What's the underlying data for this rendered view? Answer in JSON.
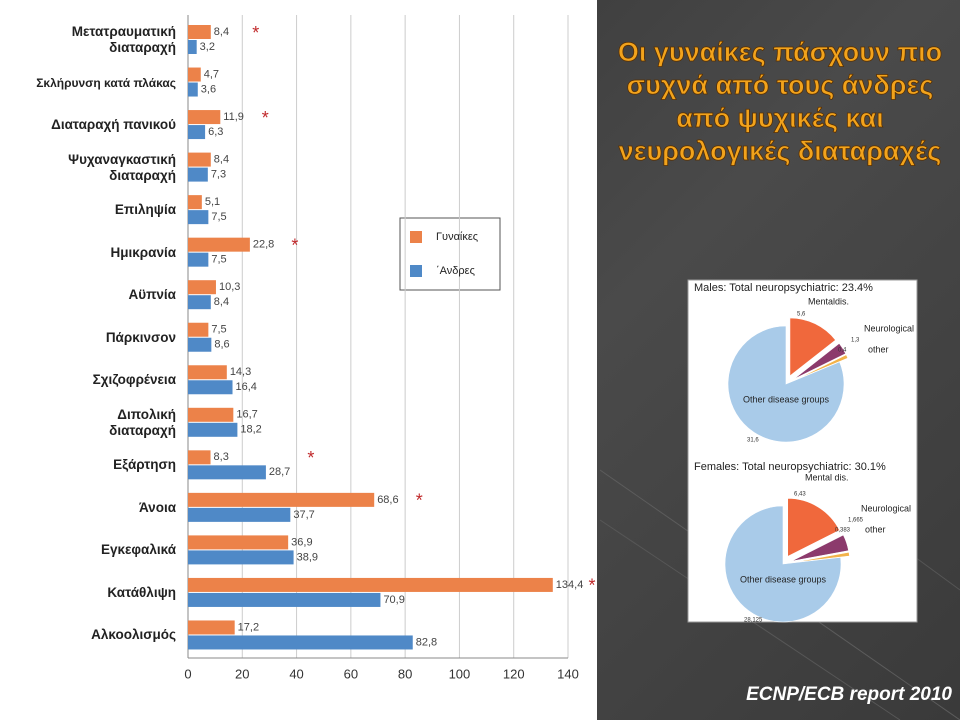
{
  "slide": {
    "title": "Οι γυναίκες πάσχουν πιο\nσυχνά από τους άνδρες\nαπό ψυχικές και\nνευρολογικές  διαταραχές",
    "source": "ECNP/ECB report 2010"
  },
  "chart_data": [
    {
      "type": "hbar",
      "categories": [
        "Μετατραυματική\nδιαταραχή",
        "Σκλήρυνση κατά πλάκας",
        "Διαταραχή πανικού",
        "Ψυχαναγκαστική\nδιαταραχή",
        "Επιληψία",
        "Ημικρανία",
        "Αϋπνία",
        "Πάρκινσον",
        "Σχιζοφρένεια",
        "Διπολική\nδιαταραχή",
        "Εξάρτηση",
        "Άνοια",
        "Εγκεφαλικά",
        "Κατάθλιψη",
        "Αλκοολισμός"
      ],
      "series": [
        {
          "name": "Γυναίκες",
          "color": "#ec8249",
          "values": [
            8.4,
            4.7,
            11.9,
            8.4,
            5.1,
            22.8,
            10.3,
            7.5,
            14.3,
            16.7,
            8.3,
            68.6,
            36.9,
            134.4,
            17.2
          ],
          "value_labels": [
            "8,4",
            "4,7",
            "11,9",
            "8,4",
            "5,1",
            "22,8",
            "10,3",
            "7,5",
            "14,3",
            "16,7",
            "8,3",
            "68,6",
            "36,9",
            "134,4",
            "17,2"
          ]
        },
        {
          "name": "΄Ανδρες",
          "color": "#4f89c7",
          "values": [
            3.2,
            3.6,
            6.3,
            7.3,
            7.5,
            7.5,
            8.4,
            8.6,
            16.4,
            18.2,
            28.7,
            37.7,
            38.9,
            70.9,
            82.8
          ],
          "value_labels": [
            "3,2",
            "3,6",
            "6,3",
            "7,3",
            "7,5",
            "7,5",
            "8,4",
            "8,6",
            "16,4",
            "18,2",
            "28,7",
            "37,7",
            "38,9",
            "70,9",
            "82,8"
          ]
        }
      ],
      "annotations": [
        "*",
        null,
        "*",
        null,
        null,
        "*",
        null,
        null,
        null,
        null,
        "*",
        "*",
        null,
        "*",
        null
      ],
      "xlim": [
        0,
        140
      ],
      "xticks": [
        0,
        20,
        40,
        60,
        80,
        100,
        120,
        140
      ],
      "grid": true
    },
    {
      "type": "pie",
      "title": "Males: Total neuropsychiatric: 23.4%",
      "categories": [
        "Mentaldis.",
        "Neurological",
        "other",
        "Other disease groups"
      ],
      "values": [
        5.6,
        1.3,
        0.4,
        31.6
      ],
      "value_labels": [
        "5,6",
        "1,3",
        "0,4",
        "31,6"
      ],
      "colors": [
        "#f0683c",
        "#8c3a6c",
        "#f2b24a",
        "#a9cbe9"
      ]
    },
    {
      "type": "pie",
      "title": "Females: Total neuropsychiatric: 30.1%",
      "categories": [
        "Mental dis.",
        "Neurological",
        "other",
        "Other disease groups"
      ],
      "values": [
        6.43,
        1.665,
        0.383,
        28.125
      ],
      "value_labels": [
        "6,43",
        "1,665",
        "0,383",
        "28,125"
      ],
      "colors": [
        "#f0683c",
        "#8c3a6c",
        "#f2b24a",
        "#a9cbe9"
      ]
    }
  ]
}
